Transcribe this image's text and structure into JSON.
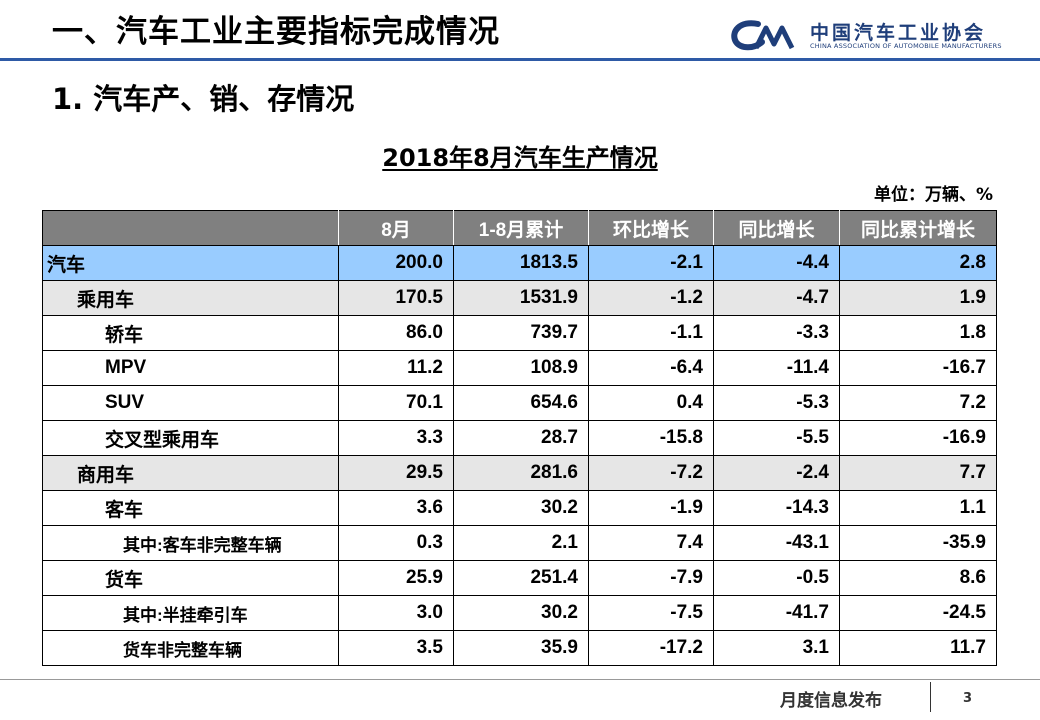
{
  "header": {
    "title": "一、汽车工业主要指标完成情况",
    "logo": {
      "name_cn": "中国汽车工业协会",
      "name_en": "CHINA ASSOCIATION OF AUTOMOBILE MANUFACTURERS",
      "color": "#1f3e7a"
    },
    "rule_color": "#2e5aa6"
  },
  "section_title": "1. 汽车产、销、存情况",
  "table": {
    "title": "2018年8月汽车生产情况",
    "unit": "单位：万辆、%",
    "columns": [
      "8月",
      "1-8月累计",
      "环比增长",
      "同比增长",
      "同比累计增长"
    ],
    "rows": [
      {
        "name": "汽车",
        "level": 0,
        "values": [
          "200.0",
          "1813.5",
          "-2.1",
          "-4.4",
          "2.8"
        ]
      },
      {
        "name": "乘用车",
        "level": 1,
        "values": [
          "170.5",
          "1531.9",
          "-1.2",
          "-4.7",
          "1.9"
        ]
      },
      {
        "name": "轿车",
        "level": 2,
        "values": [
          "86.0",
          "739.7",
          "-1.1",
          "-3.3",
          "1.8"
        ]
      },
      {
        "name": "MPV",
        "level": 2,
        "values": [
          "11.2",
          "108.9",
          "-6.4",
          "-11.4",
          "-16.7"
        ]
      },
      {
        "name": "SUV",
        "level": 2,
        "values": [
          "70.1",
          "654.6",
          "0.4",
          "-5.3",
          "7.2"
        ]
      },
      {
        "name": "交叉型乘用车",
        "level": 2,
        "values": [
          "3.3",
          "28.7",
          "-15.8",
          "-5.5",
          "-16.9"
        ]
      },
      {
        "name": "商用车",
        "level": 1,
        "values": [
          "29.5",
          "281.6",
          "-7.2",
          "-2.4",
          "7.7"
        ]
      },
      {
        "name": "客车",
        "level": 2,
        "values": [
          "3.6",
          "30.2",
          "-1.9",
          "-14.3",
          "1.1"
        ]
      },
      {
        "name": "其中:客车非完整车辆",
        "level": 3,
        "values": [
          "0.3",
          "2.1",
          "7.4",
          "-43.1",
          "-35.9"
        ]
      },
      {
        "name": "货车",
        "level": 2,
        "values": [
          "25.9",
          "251.4",
          "-7.9",
          "-0.5",
          "8.6"
        ]
      },
      {
        "name": "其中:半挂牵引车",
        "level": 3,
        "values": [
          "3.0",
          "30.2",
          "-7.5",
          "-41.7",
          "-24.5"
        ]
      },
      {
        "name": "货车非完整车辆",
        "level": 3,
        "values": [
          "3.5",
          "35.9",
          "-17.2",
          "3.1",
          "11.7"
        ]
      }
    ],
    "colors": {
      "header": "#808080",
      "total_row": "#99ccff",
      "group_row": "#e6e6e6"
    }
  },
  "footer": {
    "text": "月度信息发布",
    "page_number": "3"
  }
}
